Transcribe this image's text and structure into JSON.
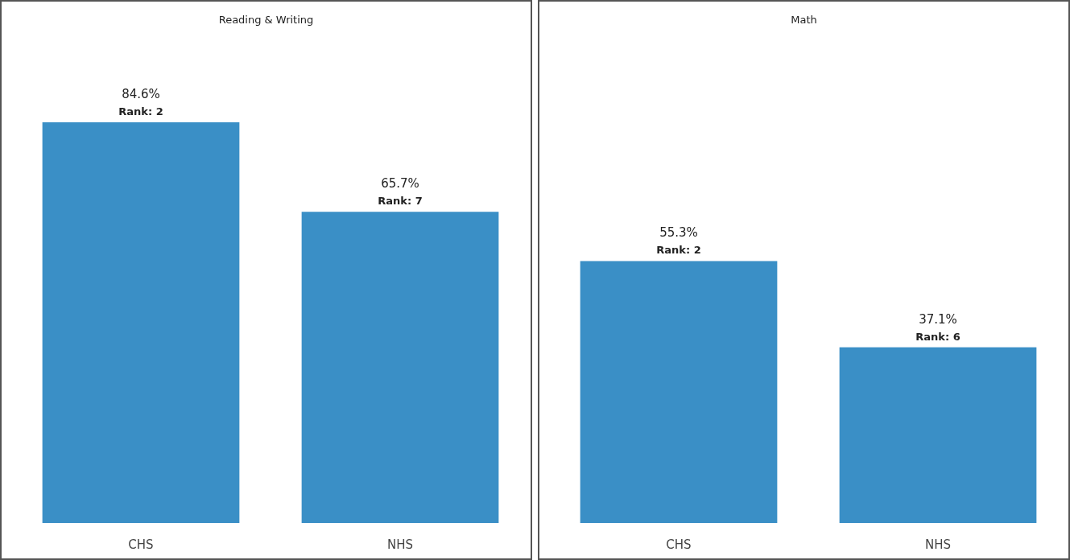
{
  "chart_data": [
    {
      "type": "bar",
      "title": "Reading & Writing",
      "categories": [
        "CHS",
        "NHS"
      ],
      "values": [
        84.6,
        65.7
      ],
      "value_labels": [
        "84.6%",
        "65.7%"
      ],
      "color": "#3a8fc6",
      "tick_labels": "x",
      "annotations": [
        {
          "text": "Rank: 2",
          "x": "CHS",
          "y": 84.6
        },
        {
          "text": "Rank: 7",
          "x": "NHS",
          "y": 65.7
        }
      ]
    },
    {
      "type": "bar",
      "title": "Math",
      "categories": [
        "CHS",
        "NHS"
      ],
      "values": [
        55.3,
        37.1
      ],
      "value_labels": [
        "55.3%",
        "37.1%"
      ],
      "color": "#3a8fc6",
      "tick_labels": "x",
      "annotations": [
        {
          "text": "Rank: 2",
          "x": "CHS",
          "y": 55.3
        },
        {
          "text": "Rank: 6",
          "x": "NHS",
          "y": 37.1
        }
      ]
    }
  ]
}
